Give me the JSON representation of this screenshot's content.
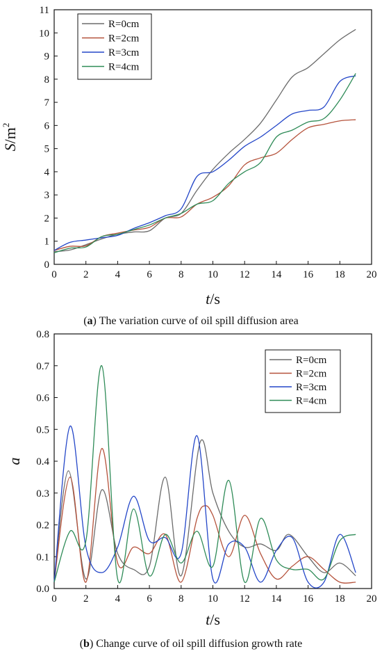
{
  "colors": {
    "R0": "#6b6b6b",
    "R2": "#b5523b",
    "R3": "#2346c8",
    "R4": "#2e8b57"
  },
  "chart_data": [
    {
      "type": "line",
      "title": "",
      "xlabel_italic": "t",
      "xlabel_unit": "/s",
      "ylabel_italic": "S",
      "ylabel_unit": "/m",
      "ylabel_sup": "2",
      "xlim": [
        0,
        20
      ],
      "ylim": [
        0,
        11
      ],
      "xticks": [
        0,
        2,
        4,
        6,
        8,
        10,
        12,
        14,
        16,
        18,
        20
      ],
      "yticks": [
        0,
        1,
        2,
        3,
        4,
        5,
        6,
        7,
        8,
        9,
        10,
        11
      ],
      "legend_position": "top-left",
      "caption_label": "a",
      "caption_text": " The variation curve of oil spill diffusion area",
      "series": [
        {
          "name": "R=0cm",
          "color_key": "R0",
          "x": [
            0,
            1,
            2,
            3,
            4,
            5,
            6,
            7,
            8,
            9,
            10,
            11,
            12,
            13,
            14,
            15,
            16,
            17,
            18,
            19
          ],
          "y": [
            0.55,
            0.62,
            0.85,
            1.1,
            1.3,
            1.4,
            1.45,
            2.0,
            2.2,
            3.2,
            4.1,
            4.8,
            5.4,
            6.1,
            7.1,
            8.1,
            8.5,
            9.1,
            9.7,
            10.15
          ]
        },
        {
          "name": "R=2cm",
          "color_key": "R2",
          "x": [
            0,
            1,
            2,
            3,
            4,
            5,
            6,
            7,
            8,
            9,
            10,
            11,
            12,
            13,
            14,
            15,
            16,
            17,
            18,
            19
          ],
          "y": [
            0.6,
            0.78,
            0.8,
            1.2,
            1.35,
            1.48,
            1.6,
            2.0,
            2.05,
            2.6,
            2.9,
            3.4,
            4.3,
            4.6,
            4.8,
            5.4,
            5.9,
            6.05,
            6.2,
            6.25
          ]
        },
        {
          "name": "R=3cm",
          "color_key": "R3",
          "x": [
            0,
            1,
            2,
            3,
            4,
            5,
            6,
            7,
            8,
            9,
            10,
            11,
            12,
            13,
            14,
            15,
            16,
            17,
            18,
            19
          ],
          "y": [
            0.6,
            0.95,
            1.05,
            1.15,
            1.25,
            1.55,
            1.8,
            2.1,
            2.4,
            3.8,
            4.0,
            4.5,
            5.1,
            5.5,
            6.0,
            6.5,
            6.65,
            6.8,
            7.9,
            8.15
          ]
        },
        {
          "name": "R=4cm",
          "color_key": "R4",
          "x": [
            0,
            1,
            2,
            3,
            4,
            5,
            6,
            7,
            8,
            9,
            10,
            11,
            12,
            13,
            14,
            15,
            16,
            17,
            18,
            19
          ],
          "y": [
            0.5,
            0.7,
            0.75,
            1.2,
            1.3,
            1.5,
            1.7,
            2.0,
            2.2,
            2.6,
            2.75,
            3.5,
            4.0,
            4.4,
            5.5,
            5.8,
            6.15,
            6.3,
            7.1,
            8.25
          ]
        }
      ]
    },
    {
      "type": "line",
      "title": "",
      "xlabel_italic": "t",
      "xlabel_unit": "/s",
      "ylabel_italic": "a",
      "ylabel_unit": "",
      "ylabel_sup": "",
      "xlim": [
        0,
        20
      ],
      "ylim": [
        0,
        0.8
      ],
      "xticks": [
        0,
        2,
        4,
        6,
        8,
        10,
        12,
        14,
        16,
        18,
        20
      ],
      "yticks": [
        0.0,
        0.1,
        0.2,
        0.3,
        0.4,
        0.5,
        0.6,
        0.7,
        0.8
      ],
      "ytick_labels": [
        "0.0",
        "0.1",
        "0.2",
        "0.3",
        "0.4",
        "0.5",
        "0.6",
        "0.7",
        "0.8"
      ],
      "legend_position": "top-right",
      "caption_label": "b",
      "caption_text": " Change curve of oil spill diffusion growth rate",
      "series": [
        {
          "name": "R=0cm",
          "color_key": "R0",
          "x": [
            0,
            0.9,
            2,
            3,
            4,
            5,
            6,
            7,
            8,
            9.2,
            10,
            11,
            12,
            13,
            14,
            14.8,
            16,
            17,
            18,
            19
          ],
          "y": [
            0.02,
            0.37,
            0.03,
            0.31,
            0.11,
            0.06,
            0.07,
            0.35,
            0.04,
            0.46,
            0.3,
            0.18,
            0.13,
            0.14,
            0.12,
            0.17,
            0.1,
            0.05,
            0.08,
            0.04
          ]
        },
        {
          "name": "R=2cm",
          "color_key": "R2",
          "x": [
            0,
            1,
            2,
            3,
            4,
            5,
            6,
            7,
            8,
            9,
            9.5,
            10,
            11,
            12,
            13,
            14,
            15,
            16,
            17,
            18,
            19
          ],
          "y": [
            0.02,
            0.35,
            0.02,
            0.44,
            0.08,
            0.13,
            0.11,
            0.17,
            0.02,
            0.22,
            0.26,
            0.23,
            0.1,
            0.23,
            0.11,
            0.03,
            0.07,
            0.1,
            0.06,
            0.02,
            0.02
          ]
        },
        {
          "name": "R=3cm",
          "color_key": "R3",
          "x": [
            0,
            1,
            2,
            3,
            4,
            5,
            6,
            7,
            8,
            9,
            10,
            11,
            12,
            13,
            14,
            15,
            16,
            17,
            18,
            19
          ],
          "y": [
            0.02,
            0.51,
            0.13,
            0.05,
            0.13,
            0.29,
            0.15,
            0.16,
            0.11,
            0.48,
            0.03,
            0.14,
            0.13,
            0.02,
            0.12,
            0.16,
            0.02,
            0.02,
            0.17,
            0.05
          ]
        },
        {
          "name": "R=4cm",
          "color_key": "R4",
          "x": [
            0,
            1,
            2,
            3,
            4,
            5,
            6,
            7,
            8,
            9,
            10,
            11,
            12,
            13,
            14,
            15,
            16,
            17,
            18,
            19
          ],
          "y": [
            0.02,
            0.18,
            0.15,
            0.7,
            0.03,
            0.25,
            0.04,
            0.17,
            0.08,
            0.18,
            0.07,
            0.34,
            0.02,
            0.22,
            0.09,
            0.06,
            0.06,
            0.03,
            0.15,
            0.17
          ]
        }
      ]
    }
  ]
}
